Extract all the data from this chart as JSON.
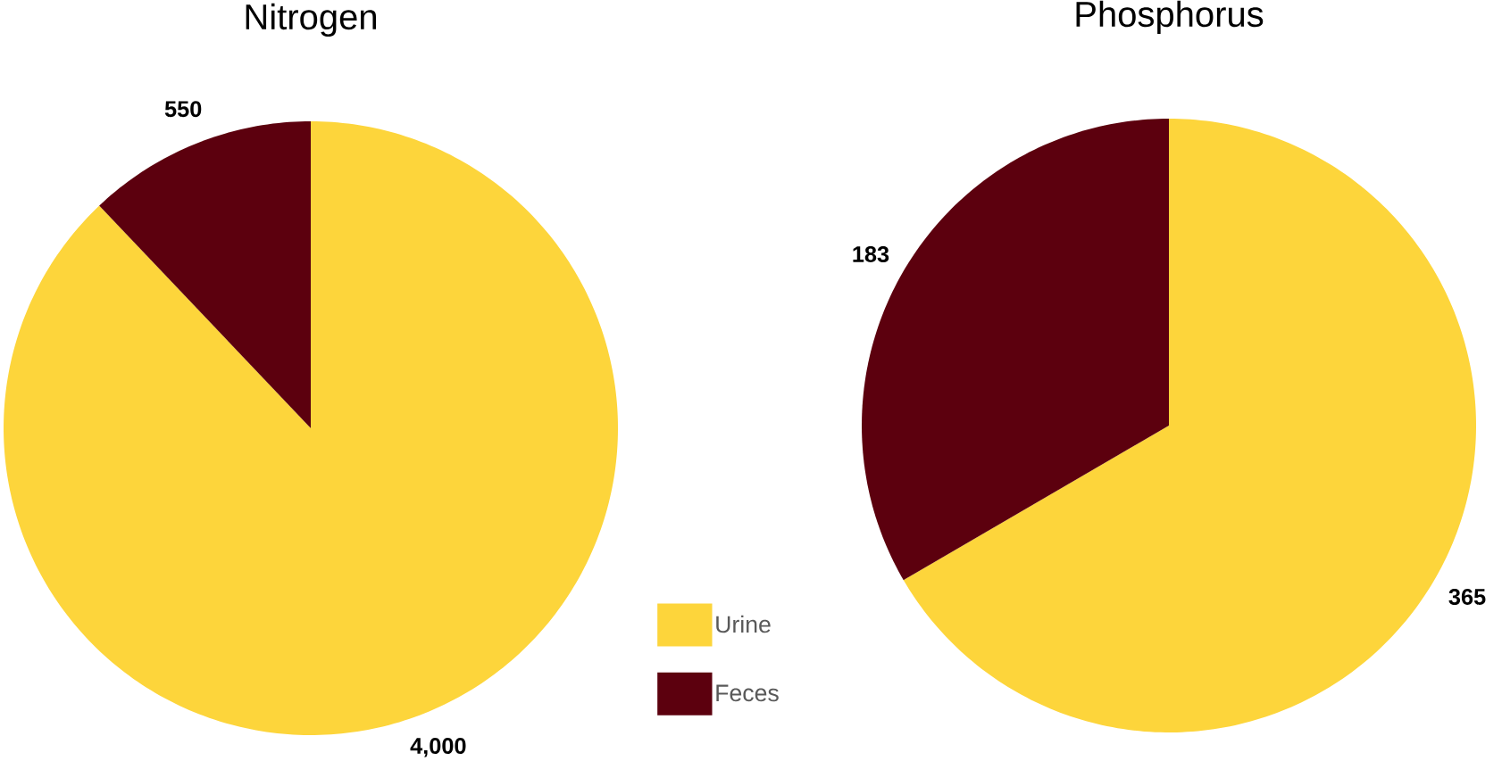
{
  "chart_data": [
    {
      "type": "pie",
      "title": "Nitrogen",
      "categories": [
        "Urine",
        "Feces"
      ],
      "values": [
        4000,
        550
      ],
      "colors": [
        "#fdd53b",
        "#5c000e"
      ],
      "value_labels": [
        "4,000",
        "550"
      ],
      "legend": "right"
    },
    {
      "type": "pie",
      "title": "Phosphorus",
      "categories": [
        null,
        null
      ],
      "values": [
        365,
        183
      ],
      "colors": [
        "#fdd53b",
        "#5c000e"
      ],
      "value_labels": [
        "365",
        "183"
      ]
    }
  ]
}
